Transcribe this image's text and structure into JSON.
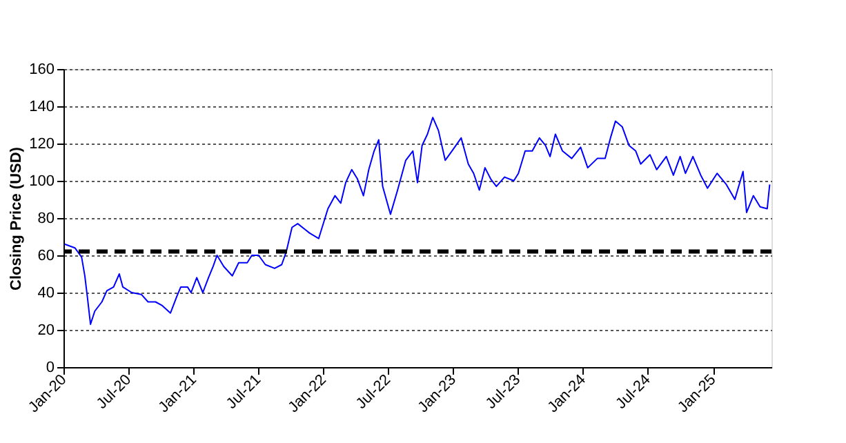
{
  "chart_data": {
    "type": "line",
    "ylabel": "Closing Price (USD)",
    "x": [
      "2020-01-04",
      "2020-02-02",
      "2020-02-21",
      "2020-03-01",
      "2020-03-08",
      "2020-03-17",
      "2020-03-29",
      "2020-04-18",
      "2020-05-02",
      "2020-05-21",
      "2020-06-06",
      "2020-06-16",
      "2020-07-11",
      "2020-08-07",
      "2020-08-26",
      "2020-09-16",
      "2020-10-05",
      "2020-10-28",
      "2020-11-15",
      "2020-11-26",
      "2020-12-15",
      "2020-12-25",
      "2021-01-10",
      "2021-01-27",
      "2021-02-12",
      "2021-02-25",
      "2021-03-08",
      "2021-03-27",
      "2021-04-20",
      "2021-05-08",
      "2021-06-01",
      "2021-06-14",
      "2021-07-03",
      "2021-07-22",
      "2021-08-17",
      "2021-09-06",
      "2021-09-19",
      "2021-10-05",
      "2021-10-21",
      "2021-11-10",
      "2021-11-23",
      "2021-12-19",
      "2022-01-14",
      "2022-02-03",
      "2022-02-19",
      "2022-03-05",
      "2022-03-22",
      "2022-04-07",
      "2022-04-24",
      "2022-05-09",
      "2022-05-24",
      "2022-06-06",
      "2022-06-17",
      "2022-07-09",
      "2022-07-29",
      "2022-08-21",
      "2022-09-10",
      "2022-09-23",
      "2022-10-06",
      "2022-10-21",
      "2022-11-05",
      "2022-11-21",
      "2022-12-10",
      "2022-12-29",
      "2023-01-24",
      "2023-02-13",
      "2023-02-28",
      "2023-03-16",
      "2023-04-01",
      "2023-04-17",
      "2023-05-03",
      "2023-05-26",
      "2023-06-21",
      "2023-07-04",
      "2023-07-23",
      "2023-08-12",
      "2023-09-01",
      "2023-09-18",
      "2023-10-01",
      "2023-10-16",
      "2023-11-05",
      "2023-12-01",
      "2023-12-26",
      "2024-01-15",
      "2024-02-11",
      "2024-03-04",
      "2024-03-19",
      "2024-04-02",
      "2024-04-21",
      "2024-05-10",
      "2024-05-29",
      "2024-06-12",
      "2024-07-08",
      "2024-07-27",
      "2024-08-23",
      "2024-09-12",
      "2024-10-01",
      "2024-10-16",
      "2024-11-06",
      "2024-11-28",
      "2024-12-17",
      "2025-01-13",
      "2025-02-08",
      "2025-03-04",
      "2025-03-27",
      "2025-04-06",
      "2025-04-25",
      "2025-05-14",
      "2025-06-03",
      "2025-06-10"
    ],
    "series": [
      {
        "color": "#0000ff",
        "values": [
          66,
          64,
          59,
          49,
          38,
          23,
          30,
          35,
          41,
          43,
          50,
          43,
          40,
          39,
          35,
          35,
          33,
          29,
          38,
          43,
          43,
          40,
          48,
          40,
          48,
          54,
          60,
          54,
          49,
          56,
          56,
          60,
          60,
          55,
          53,
          55,
          62,
          75,
          77,
          74,
          72,
          69,
          85,
          92,
          88,
          99,
          106,
          101,
          92,
          106,
          116,
          122,
          97,
          82,
          95,
          111,
          116,
          99,
          119,
          125,
          134,
          127,
          111,
          116,
          123,
          109,
          104,
          95,
          107,
          101,
          97,
          102,
          100,
          104,
          116,
          116,
          123,
          119,
          113,
          125,
          116,
          112,
          118,
          107,
          112,
          112,
          123,
          132,
          129,
          119,
          116,
          109,
          114,
          106,
          113,
          103,
          113,
          104,
          113,
          103,
          96,
          104,
          98,
          90,
          105,
          83,
          92,
          86,
          85,
          98
        ]
      }
    ],
    "xlim": [
      "2020-01-01",
      "2025-06-15"
    ],
    "xticks": [
      {
        "value": "2020-01-01",
        "label": "Jan-20"
      },
      {
        "value": "2020-07-01",
        "label": "Jul-20"
      },
      {
        "value": "2021-01-01",
        "label": "Jan-21"
      },
      {
        "value": "2021-07-01",
        "label": "Jul-21"
      },
      {
        "value": "2022-01-01",
        "label": "Jan-22"
      },
      {
        "value": "2022-07-01",
        "label": "Jul-22"
      },
      {
        "value": "2023-01-01",
        "label": "Jan-23"
      },
      {
        "value": "2023-07-01",
        "label": "Jul-23"
      },
      {
        "value": "2024-01-01",
        "label": "Jan-24"
      },
      {
        "value": "2024-07-01",
        "label": "Jul-24"
      },
      {
        "value": "2025-01-01",
        "label": "Jan-25"
      }
    ],
    "ylim": [
      0,
      160
    ],
    "yticks": [
      0,
      20,
      40,
      60,
      80,
      100,
      120,
      140,
      160
    ],
    "grid": "y",
    "legend": false,
    "marker": "none",
    "line_style": "solid",
    "ref_lines": [
      {
        "axis": "y",
        "value": 62,
        "color": "#000000",
        "line_style": "dashed"
      }
    ]
  }
}
